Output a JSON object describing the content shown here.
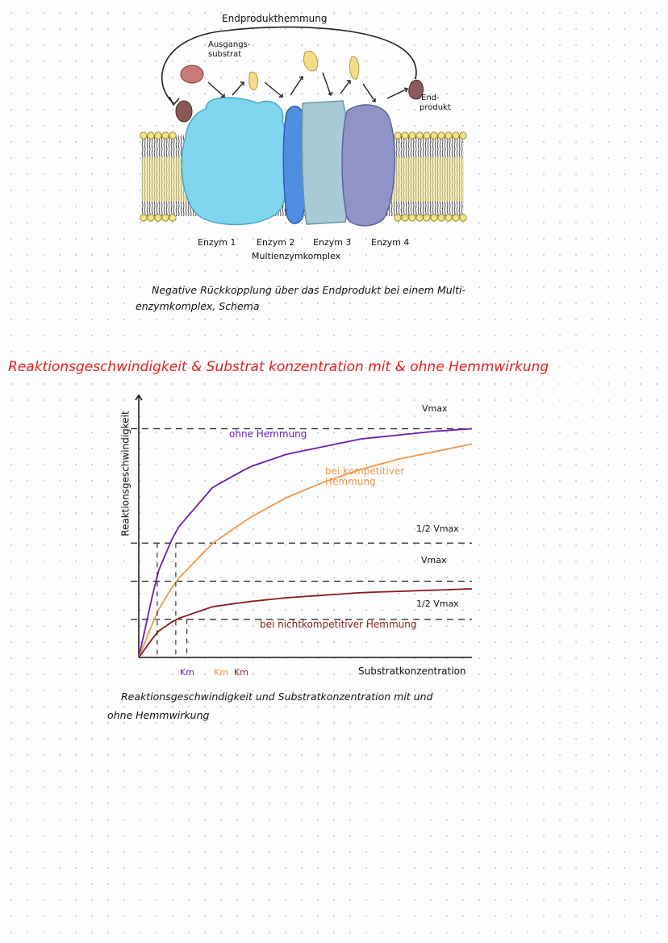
{
  "figure1": {
    "label_feedback": "Endprodukthemmung",
    "label_substrate_line1": "Ausgangs-",
    "label_substrate_line2": "substrat",
    "label_product_line1": "End-",
    "label_product_line2": "produkt",
    "enzymes": [
      "Enzym 1",
      "Enzym 2",
      "Enzym 3",
      "Enzym 4"
    ],
    "complex_label": "Multienzymkomplex",
    "caption_line1": "Negative Rückkopplung über das Endprodukt bei einem Multi-",
    "caption_line2": "enzymkomplex, Schema",
    "colors": {
      "enzyme1": "#7fd6ee",
      "enzyme2": "#4f8ee0",
      "enzyme3": "#a9cbd6",
      "enzyme4": "#8f93c6",
      "substrate": "#c97a7a",
      "product": "#8a5a5a",
      "intermediate": "#f3dd86",
      "membrane": "#f0e280"
    }
  },
  "section_heading": {
    "part1": "Reaktionsgeschwindigkeit",
    "part2": "& Substrat konzentration",
    "part3": "mit & ohne",
    "part4": "Hemmwirkung",
    "color": "#e02020"
  },
  "chart_data": {
    "type": "line",
    "ylabel": "Reaktionsgeschwindigkeit",
    "xlabel": "Substratkonzentration",
    "series": [
      {
        "name": "ohne Hemmung",
        "color": "#6a1fb0",
        "x": [
          0,
          0.5,
          1,
          2,
          3,
          4,
          5,
          6,
          7,
          8,
          9
        ],
        "y": [
          0,
          0.33,
          0.5,
          0.67,
          0.75,
          0.8,
          0.83,
          0.86,
          0.875,
          0.89,
          0.9
        ]
      },
      {
        "name": "bei kompetitiver Hemmung",
        "color": "#f0964a",
        "x": [
          0,
          0.5,
          1,
          2,
          3,
          4,
          5,
          6,
          7,
          8,
          9
        ],
        "y": [
          0,
          0.18,
          0.3,
          0.45,
          0.55,
          0.63,
          0.69,
          0.74,
          0.78,
          0.81,
          0.84
        ]
      },
      {
        "name": "bei nichtkompetitiver Hemmung",
        "color": "#8b1a1a",
        "x": [
          0,
          0.5,
          1,
          2,
          3,
          4,
          5,
          6,
          7,
          8,
          9
        ],
        "y": [
          0,
          0.1,
          0.15,
          0.2,
          0.22,
          0.235,
          0.245,
          0.255,
          0.26,
          0.265,
          0.27
        ]
      }
    ],
    "reference_lines": [
      {
        "label": "Vmax",
        "value": 0.9
      },
      {
        "label": "1/2 Vmax",
        "value": 0.45
      },
      {
        "label": "Vmax",
        "value": 0.3
      },
      {
        "label": "1/2 Vmax",
        "value": 0.15
      }
    ],
    "x_markers": [
      "Km",
      "Km",
      "Km"
    ],
    "caption_line1": "Reaktionsgeschwindigkeit und Substratkonzentration mit und",
    "caption_line2": "ohne Hemmwirkung"
  }
}
